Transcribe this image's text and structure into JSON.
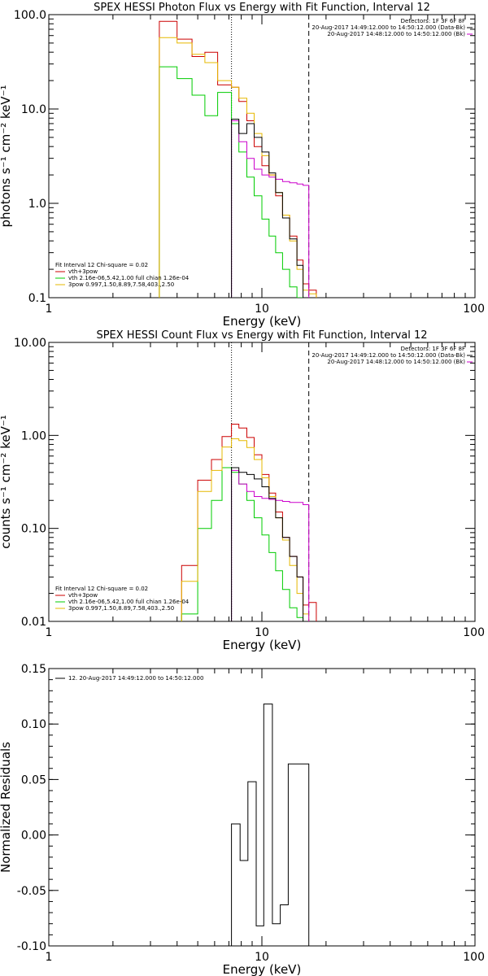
{
  "chart_data": [
    {
      "type": "line",
      "title": "SPEX HESSI Photon Flux vs Energy with Fit Function, Interval 12",
      "xlabel": "Energy (keV)",
      "ylabel": "photons s⁻¹ cm⁻² keV⁻¹",
      "xscale": "log",
      "yscale": "log",
      "xlim": [
        1,
        100
      ],
      "ylim": [
        0.1,
        100
      ],
      "xticks": [
        {
          "v": 1,
          "label": "1"
        },
        {
          "v": 10,
          "label": "10"
        },
        {
          "v": 100,
          "label": "100"
        }
      ],
      "yticks": [
        {
          "v": 0.1,
          "label": "0.1"
        },
        {
          "v": 1,
          "label": "1.0"
        },
        {
          "v": 10,
          "label": "10.0"
        },
        {
          "v": 100,
          "label": "100.0"
        }
      ],
      "vlines": [
        {
          "x": 7.2,
          "style": "dotted"
        },
        {
          "x": 16.6,
          "style": "dashed"
        }
      ],
      "info_right": [
        "Detectors: 1F 3F 6F 8F",
        "20-Aug-2017 14:49:12.000 to 14:50:12.000 (Data-Bk)",
        "20-Aug-2017 14:48:12.000 to 14:50:12.000 (Bk)"
      ],
      "info_left": "Fit Interval 12   Chi-square = 0.02",
      "series": [
        {
          "name": "vth+3pow",
          "color": "#cc0000",
          "edges": [
            3.3,
            4.0,
            4.7,
            5.4,
            6.2,
            7.2,
            7.8,
            8.5,
            9.2,
            10.0,
            10.8,
            11.6,
            12.5,
            13.5,
            14.6,
            15.6,
            16.6,
            18.0
          ],
          "values": [
            85,
            55,
            36,
            40,
            18,
            17,
            12,
            7.5,
            4,
            2.5,
            2.0,
            1.2,
            0.75,
            0.45,
            0.25,
            0.14,
            0.12
          ]
        },
        {
          "name": "vth 2.16e-06,5.42,1.00  full chian 1.26e-04",
          "color": "#00cc00",
          "edges": [
            3.3,
            4.0,
            4.7,
            5.4,
            6.2,
            7.2,
            7.8,
            8.5,
            9.2,
            10.0,
            10.8,
            11.6,
            12.5,
            13.5,
            14.6,
            15.6
          ],
          "values": [
            28,
            21,
            14,
            8.5,
            15,
            7.0,
            3.5,
            1.9,
            1.2,
            0.68,
            0.45,
            0.3,
            0.2,
            0.13,
            0.1
          ]
        },
        {
          "name": "3pow 0.997,1.50,8.89,7.58,403.,2.50",
          "color": "#e6b800",
          "edges": [
            3.3,
            4.0,
            4.7,
            5.4,
            6.2,
            7.2,
            7.8,
            8.5,
            9.2,
            10.0,
            10.8,
            11.6,
            12.5,
            13.5,
            14.6,
            15.6,
            16.6,
            18.0
          ],
          "values": [
            57,
            50,
            38,
            31,
            20,
            17,
            13,
            9,
            5.5,
            3.2,
            2.0,
            1.3,
            0.75,
            0.4,
            0.2,
            0.12,
            0.11
          ]
        },
        {
          "name": "",
          "color": "#cc00cc",
          "edges": [
            7.2,
            7.8,
            8.5,
            9.2,
            10.0,
            10.8,
            11.6,
            12.5,
            13.5,
            14.6,
            15.6,
            16.6
          ],
          "values": [
            7.5,
            4.5,
            3.0,
            2.3,
            2.0,
            1.9,
            1.8,
            1.7,
            1.65,
            1.6,
            1.55
          ]
        },
        {
          "name": "",
          "color": "#000000",
          "edges": [
            7.2,
            7.8,
            8.5,
            9.2,
            10.0,
            10.8,
            11.6,
            12.5,
            13.5,
            14.6,
            15.6
          ],
          "values": [
            7.8,
            5.5,
            7.0,
            5.0,
            3.5,
            2.1,
            1.3,
            0.7,
            0.42,
            0.22
          ]
        }
      ]
    },
    {
      "type": "line",
      "title": "SPEX HESSI Count Flux vs Energy with Fit Function, Interval 12",
      "xlabel": "Energy (keV)",
      "ylabel": "counts s⁻¹ cm⁻² keV⁻¹",
      "xscale": "log",
      "yscale": "log",
      "xlim": [
        1,
        100
      ],
      "ylim": [
        0.01,
        10
      ],
      "xticks": [
        {
          "v": 1,
          "label": "1"
        },
        {
          "v": 10,
          "label": "10"
        },
        {
          "v": 100,
          "label": "100"
        }
      ],
      "yticks": [
        {
          "v": 0.01,
          "label": "0.01"
        },
        {
          "v": 0.1,
          "label": "0.10"
        },
        {
          "v": 1,
          "label": "1.00"
        },
        {
          "v": 10,
          "label": "10.00"
        }
      ],
      "vlines": [
        {
          "x": 7.2,
          "style": "dotted"
        },
        {
          "x": 16.6,
          "style": "dashed"
        }
      ],
      "info_right": [
        "Detectors: 1F 3F 6F 8F",
        "20-Aug-2017 14:49:12.000 to 14:50:12.000 (Data-Bk)",
        "20-Aug-2017 14:48:12.000 to 14:50:12.000 (Bk)"
      ],
      "info_left": "Fit Interval 12   Chi-square = 0.02",
      "series": [
        {
          "name": "vth+3pow",
          "color": "#cc0000",
          "edges": [
            4.2,
            5.0,
            5.8,
            6.5,
            7.2,
            7.8,
            8.5,
            9.2,
            10.0,
            10.8,
            11.6,
            12.5,
            13.5,
            14.6,
            15.6,
            16.6,
            18.0
          ],
          "values": [
            0.04,
            0.33,
            0.55,
            0.97,
            1.32,
            1.2,
            0.95,
            0.62,
            0.38,
            0.24,
            0.15,
            0.08,
            0.05,
            0.03,
            0.015,
            0.016
          ]
        },
        {
          "name": "vth 2.16e-06,5.42,1.00  full chian 1.26e-04",
          "color": "#00cc00",
          "edges": [
            4.2,
            5.0,
            5.8,
            6.5,
            7.2,
            7.8,
            8.5,
            9.2,
            10.0,
            10.8,
            11.6,
            12.5,
            13.5,
            14.6,
            15.6
          ],
          "values": [
            0.012,
            0.1,
            0.2,
            0.45,
            0.4,
            0.3,
            0.2,
            0.13,
            0.085,
            0.055,
            0.035,
            0.022,
            0.014,
            0.011
          ]
        },
        {
          "name": "3pow 0.997,1.50,8.89,7.58,403.,2.50",
          "color": "#e6b800",
          "edges": [
            4.2,
            5.0,
            5.8,
            6.5,
            7.2,
            7.8,
            8.5,
            9.2,
            10.0,
            10.8,
            11.6,
            12.5,
            13.5,
            14.6,
            15.6,
            16.6
          ],
          "values": [
            0.027,
            0.25,
            0.42,
            0.75,
            0.92,
            0.88,
            0.74,
            0.55,
            0.35,
            0.22,
            0.13,
            0.075,
            0.04,
            0.02,
            0.012
          ]
        },
        {
          "name": "",
          "color": "#cc00cc",
          "edges": [
            7.2,
            7.8,
            8.5,
            9.2,
            10.0,
            10.8,
            11.6,
            12.5,
            13.5,
            14.6,
            15.6,
            16.6
          ],
          "values": [
            0.42,
            0.3,
            0.25,
            0.22,
            0.21,
            0.205,
            0.2,
            0.195,
            0.19,
            0.19,
            0.18
          ]
        },
        {
          "name": "",
          "color": "#000000",
          "edges": [
            7.2,
            7.8,
            8.5,
            9.2,
            10.0,
            10.8,
            11.6,
            12.5,
            13.5,
            14.6,
            15.6
          ],
          "values": [
            0.45,
            0.4,
            0.38,
            0.34,
            0.28,
            0.21,
            0.13,
            0.08,
            0.05,
            0.03
          ]
        }
      ]
    },
    {
      "type": "line",
      "title": "",
      "xlabel": "Energy (keV)",
      "ylabel": "Normalized Residuals",
      "xscale": "log",
      "yscale": "linear",
      "xlim": [
        1,
        100
      ],
      "ylim": [
        -0.1,
        0.15
      ],
      "xticks": [
        {
          "v": 1,
          "label": "1"
        },
        {
          "v": 10,
          "label": "10"
        },
        {
          "v": 100,
          "label": "100"
        }
      ],
      "yticks": [
        {
          "v": -0.1,
          "label": "-0.10"
        },
        {
          "v": -0.05,
          "label": "-0.05"
        },
        {
          "v": 0,
          "label": "0.00"
        },
        {
          "v": 0.05,
          "label": "0.05"
        },
        {
          "v": 0.1,
          "label": "0.10"
        },
        {
          "v": 0.15,
          "label": "0.15"
        }
      ],
      "vlines": [],
      "info_right": [],
      "info_left": "",
      "series": [
        {
          "name": "12. 20-Aug-2017 14:49:12.000 to 14:50:12.000",
          "color": "#000000",
          "edges": [
            7.2,
            7.9,
            8.6,
            9.4,
            10.2,
            11.2,
            12.2,
            13.3,
            14.6,
            15.6,
            16.6
          ],
          "values": [
            0.01,
            -0.023,
            0.048,
            -0.082,
            0.118,
            -0.08,
            -0.063,
            0.064,
            0.064,
            0.064
          ]
        }
      ]
    }
  ]
}
